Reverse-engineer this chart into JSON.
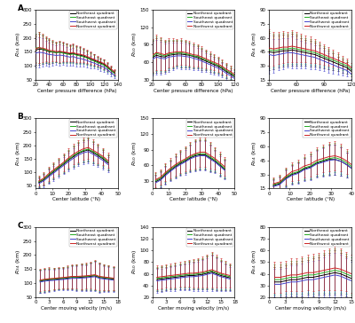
{
  "colors": {
    "NE": "#000000",
    "SE": "#22aa22",
    "SW": "#4444cc",
    "NW": "#cc2222"
  },
  "legend_labels": [
    "Northeast quadrant",
    "Southeast quadrant",
    "Southwest quadrant",
    "Northwest quadrant"
  ],
  "xlabels": {
    "A": "Center pressure difference (hPa)",
    "B": "Center latitude (°N)",
    "C": "Center moving velocity (m/s)"
  },
  "ylims": {
    "A1": [
      50,
      300
    ],
    "A2": [
      30,
      150
    ],
    "A3": [
      15,
      90
    ],
    "B1": [
      40,
      300
    ],
    "B2": [
      15,
      150
    ],
    "B3": [
      15,
      90
    ],
    "C1": [
      50,
      300
    ],
    "C2": [
      20,
      140
    ],
    "C3": [
      20,
      80
    ]
  },
  "yticks": {
    "A1": [
      50,
      100,
      150,
      200,
      250,
      300
    ],
    "A2": [
      30,
      60,
      90,
      120,
      150
    ],
    "A3": [
      15,
      30,
      45,
      60,
      75,
      90
    ],
    "B1": [
      50,
      100,
      150,
      200,
      250,
      300
    ],
    "B2": [
      30,
      60,
      90,
      120,
      150
    ],
    "B3": [
      15,
      30,
      45,
      60,
      75,
      90
    ],
    "C1": [
      50,
      100,
      150,
      200,
      250,
      300
    ],
    "C2": [
      20,
      40,
      60,
      80,
      100,
      120,
      140
    ],
    "C3": [
      20,
      30,
      40,
      50,
      60,
      70,
      80
    ]
  },
  "A_xdata": [
    20,
    25,
    30,
    35,
    40,
    45,
    50,
    55,
    60,
    65,
    70,
    75,
    80,
    85,
    90,
    95,
    100,
    105,
    110,
    115,
    120,
    125,
    130,
    135
  ],
  "A_xlim": [
    20,
    140
  ],
  "A_xticks": [
    20,
    40,
    60,
    80,
    100,
    120,
    140
  ],
  "A2_xlim": [
    20,
    120
  ],
  "A2_xticks": [
    20,
    40,
    60,
    80,
    100,
    120
  ],
  "A3_xdata": [
    30,
    35,
    40,
    45,
    50,
    55,
    60,
    65,
    70,
    75,
    80,
    85,
    90,
    95,
    100,
    105,
    110,
    115,
    120
  ],
  "A3_xlim": [
    30,
    120
  ],
  "A3_xticks": [
    30,
    60,
    90,
    120
  ],
  "B_xdata": [
    2,
    5,
    8,
    11,
    14,
    17,
    20,
    23,
    26,
    29,
    32,
    35,
    38,
    41,
    44
  ],
  "B_xlim": [
    0,
    50
  ],
  "B_xticks": [
    0,
    10,
    20,
    30,
    40,
    50
  ],
  "B3_xlim": [
    0,
    40
  ],
  "B3_xticks": [
    0,
    10,
    20,
    30,
    40
  ],
  "C_xdata": [
    1,
    2,
    3,
    4,
    5,
    6,
    7,
    8,
    9,
    10,
    11,
    12,
    13,
    14,
    15,
    16,
    17
  ],
  "C_xlim": [
    0,
    18
  ],
  "C_xticks": [
    0,
    3,
    6,
    9,
    12,
    15,
    18
  ],
  "C3_xdata": [
    1,
    2,
    3,
    4,
    5,
    6,
    7,
    8,
    9,
    10,
    11,
    12,
    13,
    14,
    15
  ],
  "C3_xlim": [
    0,
    15
  ],
  "C3_xticks": [
    0,
    3,
    6,
    9,
    12,
    15
  ],
  "A1_NE": [
    155,
    160,
    158,
    155,
    150,
    149,
    147,
    149,
    148,
    145,
    143,
    144,
    140,
    138,
    135,
    130,
    125,
    120,
    115,
    110,
    105,
    95,
    85,
    75
  ],
  "A1_SE": [
    163,
    165,
    160,
    157,
    152,
    150,
    147,
    148,
    145,
    143,
    140,
    142,
    138,
    135,
    132,
    128,
    122,
    117,
    112,
    107,
    102,
    93,
    83,
    73
  ],
  "A1_SW": [
    145,
    148,
    147,
    144,
    140,
    139,
    137,
    138,
    137,
    134,
    131,
    133,
    128,
    126,
    123,
    119,
    114,
    110,
    105,
    100,
    95,
    86,
    76,
    66
  ],
  "A1_NW": [
    160,
    165,
    163,
    160,
    155,
    154,
    151,
    152,
    150,
    148,
    145,
    147,
    143,
    141,
    138,
    134,
    128,
    123,
    118,
    113,
    108,
    99,
    89,
    79
  ],
  "A1_NE_err_up": [
    50,
    55,
    50,
    45,
    42,
    38,
    35,
    38,
    35,
    33,
    30,
    32,
    30,
    28,
    26,
    24,
    22,
    20,
    18,
    17,
    16,
    14,
    12,
    10
  ],
  "A1_NE_err_dn": [
    50,
    55,
    50,
    45,
    42,
    38,
    35,
    38,
    35,
    33,
    30,
    32,
    30,
    28,
    26,
    24,
    22,
    20,
    18,
    17,
    16,
    14,
    12,
    10
  ],
  "A2_NE": [
    68,
    72,
    70,
    69,
    72,
    73,
    74,
    74,
    73,
    72,
    70,
    68,
    65,
    62,
    59,
    56,
    53,
    49,
    44,
    40,
    35,
    30,
    24,
    18
  ],
  "A2_SE": [
    70,
    75,
    73,
    71,
    74,
    75,
    76,
    76,
    75,
    73,
    71,
    70,
    67,
    64,
    61,
    58,
    55,
    51,
    46,
    42,
    37,
    32,
    26,
    20
  ],
  "A2_SW": [
    65,
    69,
    67,
    66,
    69,
    70,
    71,
    71,
    70,
    69,
    67,
    65,
    62,
    59,
    56,
    53,
    50,
    46,
    41,
    37,
    32,
    27,
    21,
    15
  ],
  "A2_NW": [
    72,
    77,
    75,
    73,
    76,
    77,
    78,
    78,
    77,
    75,
    73,
    72,
    69,
    66,
    63,
    60,
    57,
    53,
    48,
    44,
    39,
    34,
    28,
    22
  ],
  "A2_err": [
    28,
    30,
    28,
    26,
    25,
    24,
    22,
    23,
    22,
    21,
    20,
    19,
    18,
    16,
    15,
    14,
    13,
    12,
    11,
    10,
    9,
    8,
    7,
    6
  ],
  "A3_NE": [
    45,
    44,
    45,
    46,
    46,
    47,
    46,
    45,
    44,
    43,
    42,
    40,
    38,
    36,
    34,
    32,
    30,
    28,
    24
  ],
  "A3_SE": [
    47,
    46,
    47,
    48,
    48,
    49,
    48,
    47,
    46,
    45,
    44,
    42,
    40,
    38,
    36,
    34,
    32,
    30,
    26
  ],
  "A3_SW": [
    42,
    41,
    42,
    43,
    44,
    44,
    43,
    42,
    41,
    40,
    39,
    37,
    35,
    33,
    31,
    29,
    27,
    25,
    21
  ],
  "A3_NW": [
    49,
    48,
    49,
    50,
    50,
    51,
    50,
    49,
    48,
    47,
    46,
    44,
    42,
    40,
    38,
    36,
    34,
    32,
    28
  ],
  "A3_err": [
    20,
    18,
    17,
    17,
    16,
    17,
    16,
    15,
    14,
    14,
    13,
    12,
    11,
    10,
    9,
    8,
    7,
    6,
    5
  ],
  "B1_NE": [
    62,
    72,
    88,
    102,
    116,
    130,
    145,
    158,
    170,
    178,
    183,
    173,
    162,
    150,
    135
  ],
  "B1_SE": [
    65,
    75,
    91,
    105,
    119,
    133,
    148,
    162,
    173,
    181,
    186,
    177,
    166,
    154,
    139
  ],
  "B1_SW": [
    58,
    68,
    83,
    97,
    111,
    125,
    139,
    152,
    164,
    172,
    177,
    167,
    156,
    144,
    129
  ],
  "B1_NW": [
    68,
    78,
    95,
    109,
    123,
    137,
    153,
    167,
    178,
    187,
    192,
    182,
    171,
    159,
    144
  ],
  "B1_err": [
    18,
    22,
    26,
    28,
    30,
    32,
    35,
    38,
    40,
    42,
    42,
    40,
    36,
    32,
    28
  ],
  "B2_NE": [
    28,
    33,
    42,
    50,
    57,
    63,
    68,
    74,
    78,
    80,
    80,
    74,
    68,
    60,
    52
  ],
  "B2_SE": [
    30,
    35,
    44,
    52,
    59,
    65,
    70,
    76,
    80,
    82,
    82,
    76,
    70,
    62,
    54
  ],
  "B2_SW": [
    26,
    31,
    40,
    48,
    55,
    61,
    66,
    72,
    76,
    78,
    78,
    72,
    66,
    58,
    50
  ],
  "B2_NW": [
    32,
    37,
    46,
    54,
    61,
    67,
    72,
    78,
    82,
    85,
    85,
    79,
    73,
    65,
    57
  ],
  "B2_err": [
    14,
    15,
    17,
    19,
    21,
    22,
    24,
    26,
    28,
    28,
    28,
    26,
    22,
    20,
    18
  ],
  "B3_NE": [
    18,
    20,
    26,
    30,
    32,
    36,
    38,
    42,
    44,
    46,
    46,
    44,
    40,
    35,
    30
  ],
  "B3_SE": [
    19,
    21,
    27,
    31,
    33,
    37,
    39,
    43,
    45,
    47,
    48,
    46,
    42,
    37,
    32
  ],
  "B3_SW": [
    17,
    19,
    25,
    29,
    31,
    35,
    37,
    41,
    43,
    45,
    46,
    44,
    40,
    35,
    30
  ],
  "B3_NW": [
    20,
    22,
    28,
    33,
    35,
    39,
    41,
    45,
    47,
    49,
    50,
    48,
    44,
    39,
    34
  ],
  "B3_err": [
    7,
    8,
    9,
    10,
    11,
    12,
    13,
    14,
    15,
    16,
    16,
    15,
    13,
    11,
    9
  ],
  "C1_NE": [
    107,
    110,
    112,
    113,
    115,
    116,
    118,
    120,
    120,
    121,
    122,
    124,
    126,
    120,
    118,
    116,
    114
  ],
  "C1_SE": [
    109,
    112,
    114,
    115,
    117,
    118,
    120,
    122,
    122,
    123,
    124,
    126,
    128,
    122,
    120,
    118,
    116
  ],
  "C1_SW": [
    104,
    107,
    109,
    110,
    112,
    113,
    115,
    117,
    117,
    118,
    119,
    121,
    123,
    117,
    115,
    113,
    111
  ],
  "C1_NW": [
    111,
    114,
    116,
    117,
    119,
    120,
    122,
    124,
    124,
    125,
    126,
    128,
    130,
    124,
    122,
    120,
    118
  ],
  "C1_err": [
    40,
    40,
    40,
    38,
    38,
    38,
    40,
    42,
    44,
    46,
    46,
    48,
    52,
    50,
    46,
    44,
    42
  ],
  "C2_NE": [
    50,
    51,
    52,
    53,
    54,
    55,
    56,
    57,
    57,
    58,
    59,
    61,
    63,
    60,
    57,
    55,
    53
  ],
  "C2_SE": [
    52,
    53,
    54,
    55,
    56,
    57,
    58,
    59,
    59,
    60,
    61,
    63,
    65,
    62,
    59,
    57,
    55
  ],
  "C2_SW": [
    48,
    49,
    50,
    51,
    52,
    53,
    54,
    55,
    55,
    56,
    57,
    59,
    61,
    58,
    55,
    53,
    51
  ],
  "C2_NW": [
    54,
    55,
    56,
    57,
    58,
    59,
    60,
    61,
    61,
    62,
    63,
    65,
    67,
    64,
    61,
    59,
    57
  ],
  "C2_err": [
    20,
    20,
    20,
    20,
    21,
    21,
    22,
    23,
    24,
    25,
    26,
    28,
    30,
    28,
    25,
    23,
    21
  ],
  "C3_NE": [
    33,
    33,
    34,
    35,
    35,
    36,
    37,
    37,
    38,
    39,
    40,
    41,
    40,
    38,
    36
  ],
  "C3_SE": [
    35,
    35,
    36,
    37,
    37,
    38,
    39,
    39,
    40,
    41,
    42,
    43,
    42,
    40,
    38
  ],
  "C3_SW": [
    31,
    31,
    32,
    33,
    33,
    34,
    35,
    35,
    36,
    37,
    38,
    39,
    38,
    36,
    34
  ],
  "C3_NW": [
    37,
    37,
    38,
    39,
    39,
    40,
    41,
    41,
    42,
    43,
    44,
    45,
    44,
    42,
    40
  ],
  "C3_err": [
    13,
    13,
    13,
    14,
    14,
    15,
    15,
    16,
    16,
    17,
    18,
    19,
    18,
    17,
    16
  ]
}
